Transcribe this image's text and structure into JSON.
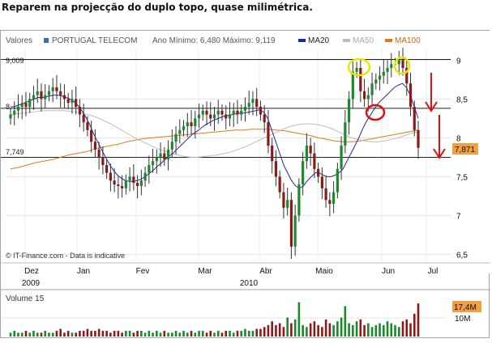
{
  "caption": "Reparem na projecção do duplo topo, quase milimétrica.",
  "colors": {
    "candle_up": "#1a8a2a",
    "candle_down": "#8b1a1a",
    "ma20": "#1f2a9e",
    "ma50": "#bdbdbd",
    "ma100": "#e07a1e",
    "annotation_yellow": "#e6e600",
    "annotation_red": "#e01010",
    "price_marker": "#f0a040",
    "legend_square": "#3a6ea5"
  },
  "chart_data": [
    {
      "type": "candlestick",
      "title": "PORTUGAL TELECOM",
      "yaxis_label": "Valores",
      "stats_text": "Ano Mínimo: 6,480 Máximo: 9,119",
      "legend": [
        {
          "name": "MA20",
          "color": "#1f2a9e"
        },
        {
          "name": "MA50",
          "color": "#bdbdbd"
        },
        {
          "name": "MA100",
          "color": "#e07a1e"
        }
      ],
      "ylim": [
        6.4,
        9.15
      ],
      "y_ticks": [
        "6,5",
        "7",
        "7,5",
        "8",
        "8,5",
        "9"
      ],
      "x_month_labels": [
        "Dez",
        "Jan",
        "Fev",
        "Mar",
        "Abr",
        "Maio",
        "Jun",
        "Jul"
      ],
      "x_year_labels": [
        "2009",
        "2010"
      ],
      "left_labels": [
        "9,009",
        "8,",
        "7,749"
      ],
      "last_price": "7,871",
      "horizontal_levels": [
        9.009,
        8.38,
        7.749
      ],
      "watermark": "© IT-Finance.com - Data is indicative",
      "legend_placement": "top",
      "grid": true,
      "close_series": [
        8.3,
        8.35,
        8.4,
        8.45,
        8.4,
        8.5,
        8.55,
        8.6,
        8.5,
        8.55,
        8.6,
        8.65,
        8.6,
        8.55,
        8.5,
        8.45,
        8.5,
        8.4,
        8.3,
        8.2,
        8.1,
        7.95,
        7.85,
        7.75,
        7.65,
        7.55,
        7.45,
        7.4,
        7.38,
        7.35,
        7.45,
        7.5,
        7.42,
        7.38,
        7.45,
        7.55,
        7.65,
        7.7,
        7.75,
        7.8,
        7.72,
        7.85,
        7.95,
        8.05,
        8.1,
        8.15,
        8.2,
        8.15,
        8.25,
        8.3,
        8.35,
        8.3,
        8.25,
        8.3,
        8.35,
        8.3,
        8.25,
        8.3,
        8.35,
        8.3,
        8.35,
        8.4,
        8.45,
        8.5,
        8.4,
        8.3,
        8.2,
        7.9,
        7.7,
        7.5,
        7.3,
        7.1,
        7.2,
        6.6,
        7.0,
        7.4,
        7.7,
        7.9,
        7.8,
        7.6,
        7.5,
        7.35,
        7.2,
        7.15,
        7.3,
        7.6,
        7.9,
        8.2,
        8.5,
        8.85,
        8.9,
        8.6,
        8.5,
        8.55,
        8.7,
        8.75,
        8.8,
        8.85,
        8.9,
        8.95,
        8.95,
        9.0,
        8.9,
        8.7,
        8.4,
        8.1,
        7.871
      ],
      "ma20": [
        8.4,
        8.4,
        8.42,
        8.44,
        8.46,
        8.48,
        8.5,
        8.52,
        8.52,
        8.53,
        8.54,
        8.55,
        8.55,
        8.54,
        8.52,
        8.5,
        8.47,
        8.42,
        8.35,
        8.27,
        8.17,
        8.05,
        7.95,
        7.85,
        7.75,
        7.66,
        7.58,
        7.52,
        7.48,
        7.45,
        7.44,
        7.44,
        7.45,
        7.47,
        7.5,
        7.54,
        7.58,
        7.63,
        7.67,
        7.72,
        7.76,
        7.8,
        7.85,
        7.9,
        7.95,
        8.0,
        8.05,
        8.08,
        8.12,
        8.16,
        8.19,
        8.22,
        8.24,
        8.26,
        8.28,
        8.29,
        8.3,
        8.31,
        8.32,
        8.32,
        8.33,
        8.34,
        8.35,
        8.36,
        8.33,
        8.25,
        8.1,
        7.95,
        7.8,
        7.65,
        7.55,
        7.45,
        7.38,
        7.35,
        7.38,
        7.45,
        7.5,
        7.55,
        7.55,
        7.52,
        7.5,
        7.5,
        7.52,
        7.55,
        7.6,
        7.7,
        7.8,
        7.9,
        8.0,
        8.12,
        8.22,
        8.3,
        8.38,
        8.45,
        8.5,
        8.55,
        8.6,
        8.65,
        8.68,
        8.7,
        8.65,
        8.55,
        8.4,
        8.25
      ],
      "ma50": [
        8.3,
        8.31,
        8.32,
        8.33,
        8.34,
        8.35,
        8.35,
        8.35,
        8.35,
        8.34,
        8.33,
        8.31,
        8.29,
        8.26,
        8.22,
        8.18,
        8.13,
        8.08,
        8.03,
        7.98,
        7.94,
        7.9,
        7.86,
        7.83,
        7.8,
        7.78,
        7.76,
        7.75,
        7.75,
        7.76,
        7.77,
        7.78,
        7.8,
        7.82,
        7.85,
        7.88,
        7.92,
        7.96,
        8.0,
        8.04,
        8.08,
        8.12,
        8.15,
        8.17,
        8.18,
        8.18,
        8.17,
        8.15,
        8.12,
        8.08,
        8.04,
        8.0,
        7.98,
        7.96,
        7.95,
        7.95,
        7.96,
        7.98,
        8.0,
        8.03,
        8.06,
        8.08
      ],
      "ma100": [
        7.6,
        7.62,
        7.65,
        7.68,
        7.7,
        7.72,
        7.75,
        7.78,
        7.8,
        7.82,
        7.85,
        7.88,
        7.9,
        7.92,
        7.95,
        7.97,
        7.99,
        8.0,
        8.01,
        8.02,
        8.03,
        8.04,
        8.05,
        8.06,
        8.07,
        8.08,
        8.09,
        8.1,
        8.1,
        8.11,
        8.11,
        8.11,
        8.1,
        8.09,
        8.07,
        8.05,
        8.03,
        8.0,
        7.98,
        7.96,
        7.95,
        7.95,
        7.96,
        7.98,
        8.0,
        8.02,
        8.04,
        8.06,
        8.08,
        8.1
      ],
      "volume": [
        2,
        3,
        2,
        2,
        3,
        2,
        3,
        2,
        2,
        3,
        2,
        2,
        3,
        4,
        2,
        3,
        2,
        2,
        3,
        3,
        4,
        3,
        3,
        4,
        3,
        3,
        2,
        3,
        3,
        2,
        3,
        3,
        2,
        3,
        3,
        2,
        3,
        2,
        3,
        2,
        3,
        2,
        2,
        3,
        2,
        3,
        2,
        3,
        2,
        3,
        3,
        2,
        3,
        2,
        3,
        2,
        3,
        3,
        2,
        3,
        3,
        4,
        3,
        3,
        4,
        4,
        5,
        6,
        8,
        6,
        7,
        5,
        10,
        7,
        9,
        18,
        6,
        5,
        7,
        8,
        6,
        5,
        9,
        7,
        6,
        8,
        10,
        16,
        7,
        6,
        8,
        9,
        6,
        7,
        5,
        6,
        7,
        6,
        8,
        7,
        6,
        5,
        8,
        9,
        7,
        12,
        17.4
      ]
    },
    {
      "type": "bar",
      "title": "Volume 15",
      "y_ticks": [
        "10M"
      ],
      "last_value": "17,4M"
    }
  ]
}
